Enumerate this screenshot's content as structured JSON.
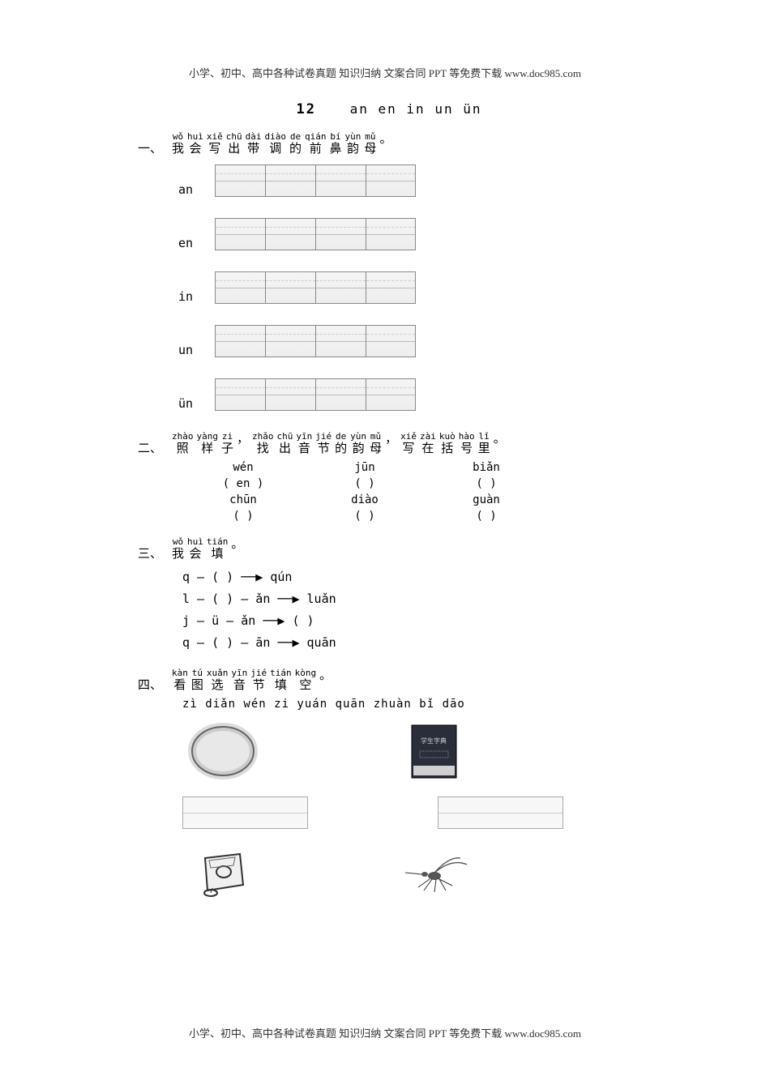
{
  "header": "小学、初中、高中各种试卷真题 知识归纳 文案合同 PPT 等免费下载  www.doc985.com",
  "footer": "小学、初中、高中各种试卷真题 知识归纳 文案合同 PPT 等免费下载  www.doc985.com",
  "lesson": {
    "number": "12",
    "pinyin_list": "an  en  in  un  ün"
  },
  "section1": {
    "label": "一、",
    "ruby": [
      {
        "p": "wǒ",
        "h": "我"
      },
      {
        "p": "huì",
        "h": "会"
      },
      {
        "p": "xiě",
        "h": "写"
      },
      {
        "p": "chū",
        "h": "出"
      },
      {
        "p": "dài",
        "h": "带"
      },
      {
        "p": "diào",
        "h": "调"
      },
      {
        "p": "de",
        "h": "的"
      },
      {
        "p": "qián",
        "h": "前"
      },
      {
        "p": "bí",
        "h": "鼻"
      },
      {
        "p": "yùn",
        "h": "韵"
      },
      {
        "p": "mǔ",
        "h": "母"
      },
      {
        "p": "",
        "h": "。"
      }
    ],
    "rows": [
      "an",
      "en",
      "in",
      "un",
      "ün"
    ]
  },
  "section2": {
    "label": "二、",
    "ruby": [
      {
        "p": "zhào",
        "h": "照"
      },
      {
        "p": "yàng",
        "h": "样"
      },
      {
        "p": "zi",
        "h": "子"
      },
      {
        "p": "",
        "h": "，"
      },
      {
        "p": "zhǎo",
        "h": "找"
      },
      {
        "p": "chū",
        "h": "出"
      },
      {
        "p": "yīn",
        "h": "音"
      },
      {
        "p": "jié",
        "h": "节"
      },
      {
        "p": "de",
        "h": "的"
      },
      {
        "p": "yùn",
        "h": "韵"
      },
      {
        "p": "mǔ",
        "h": "母"
      },
      {
        "p": "",
        "h": "，"
      },
      {
        "p": "xiě",
        "h": "写"
      },
      {
        "p": "zài",
        "h": "在"
      },
      {
        "p": "kuò",
        "h": "括"
      },
      {
        "p": "hào",
        "h": "号"
      },
      {
        "p": "lǐ",
        "h": "里"
      },
      {
        "p": "",
        "h": "。"
      }
    ],
    "examples": {
      "r1": [
        "wén",
        "jūn",
        "biǎn"
      ],
      "r2": [
        "( en )",
        "(    )",
        "(    )"
      ],
      "r3": [
        "chūn",
        "diào",
        "guàn"
      ],
      "r4": [
        "(    )",
        "(    )",
        "(    )"
      ]
    }
  },
  "section3": {
    "label": "三、",
    "ruby": [
      {
        "p": "wǒ",
        "h": "我"
      },
      {
        "p": "huì",
        "h": "会"
      },
      {
        "p": "tián",
        "h": "填"
      },
      {
        "p": "",
        "h": "。"
      }
    ],
    "lines": [
      "q  —  (     ) ──▶ qún",
      "l  —  (     )  —   ǎn ──▶ luǎn",
      "j  —   ü  —  ǎn ──▶ (     )",
      "q  —  (     ) —   ān  ──▶ quān"
    ]
  },
  "section4": {
    "label": "四、",
    "ruby": [
      {
        "p": "kàn",
        "h": "看"
      },
      {
        "p": "tú",
        "h": "图"
      },
      {
        "p": "xuǎn",
        "h": "选"
      },
      {
        "p": "yīn",
        "h": "音"
      },
      {
        "p": "jié",
        "h": "节"
      },
      {
        "p": "tián",
        "h": "填"
      },
      {
        "p": "kòng",
        "h": "空"
      },
      {
        "p": "",
        "h": "。"
      }
    ],
    "options": "zì diǎn    wén zi    yuán quān    zhuàn bǐ dāo",
    "images": [
      "circle",
      "dictionary",
      "sharpener",
      "mosquito"
    ]
  },
  "colors": {
    "text": "#000000",
    "bg": "#ffffff",
    "cell_border": "#888888",
    "cell_fill": "#f4f4f4"
  }
}
